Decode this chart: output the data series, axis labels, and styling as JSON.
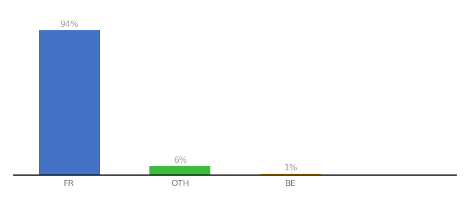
{
  "categories": [
    "FR",
    "OTH",
    "BE"
  ],
  "values": [
    94,
    6,
    1
  ],
  "bar_colors": [
    "#4472c4",
    "#3dbb3d",
    "#f0a500"
  ],
  "label_texts": [
    "94%",
    "6%",
    "1%"
  ],
  "ylim": [
    0,
    100
  ],
  "background_color": "#ffffff",
  "bar_width": 0.55,
  "label_fontsize": 9,
  "tick_fontsize": 9,
  "label_color": "#a0a0a0",
  "tick_color": "#777777",
  "x_positions": [
    0,
    1,
    2
  ],
  "xlim": [
    -0.5,
    3.5
  ]
}
